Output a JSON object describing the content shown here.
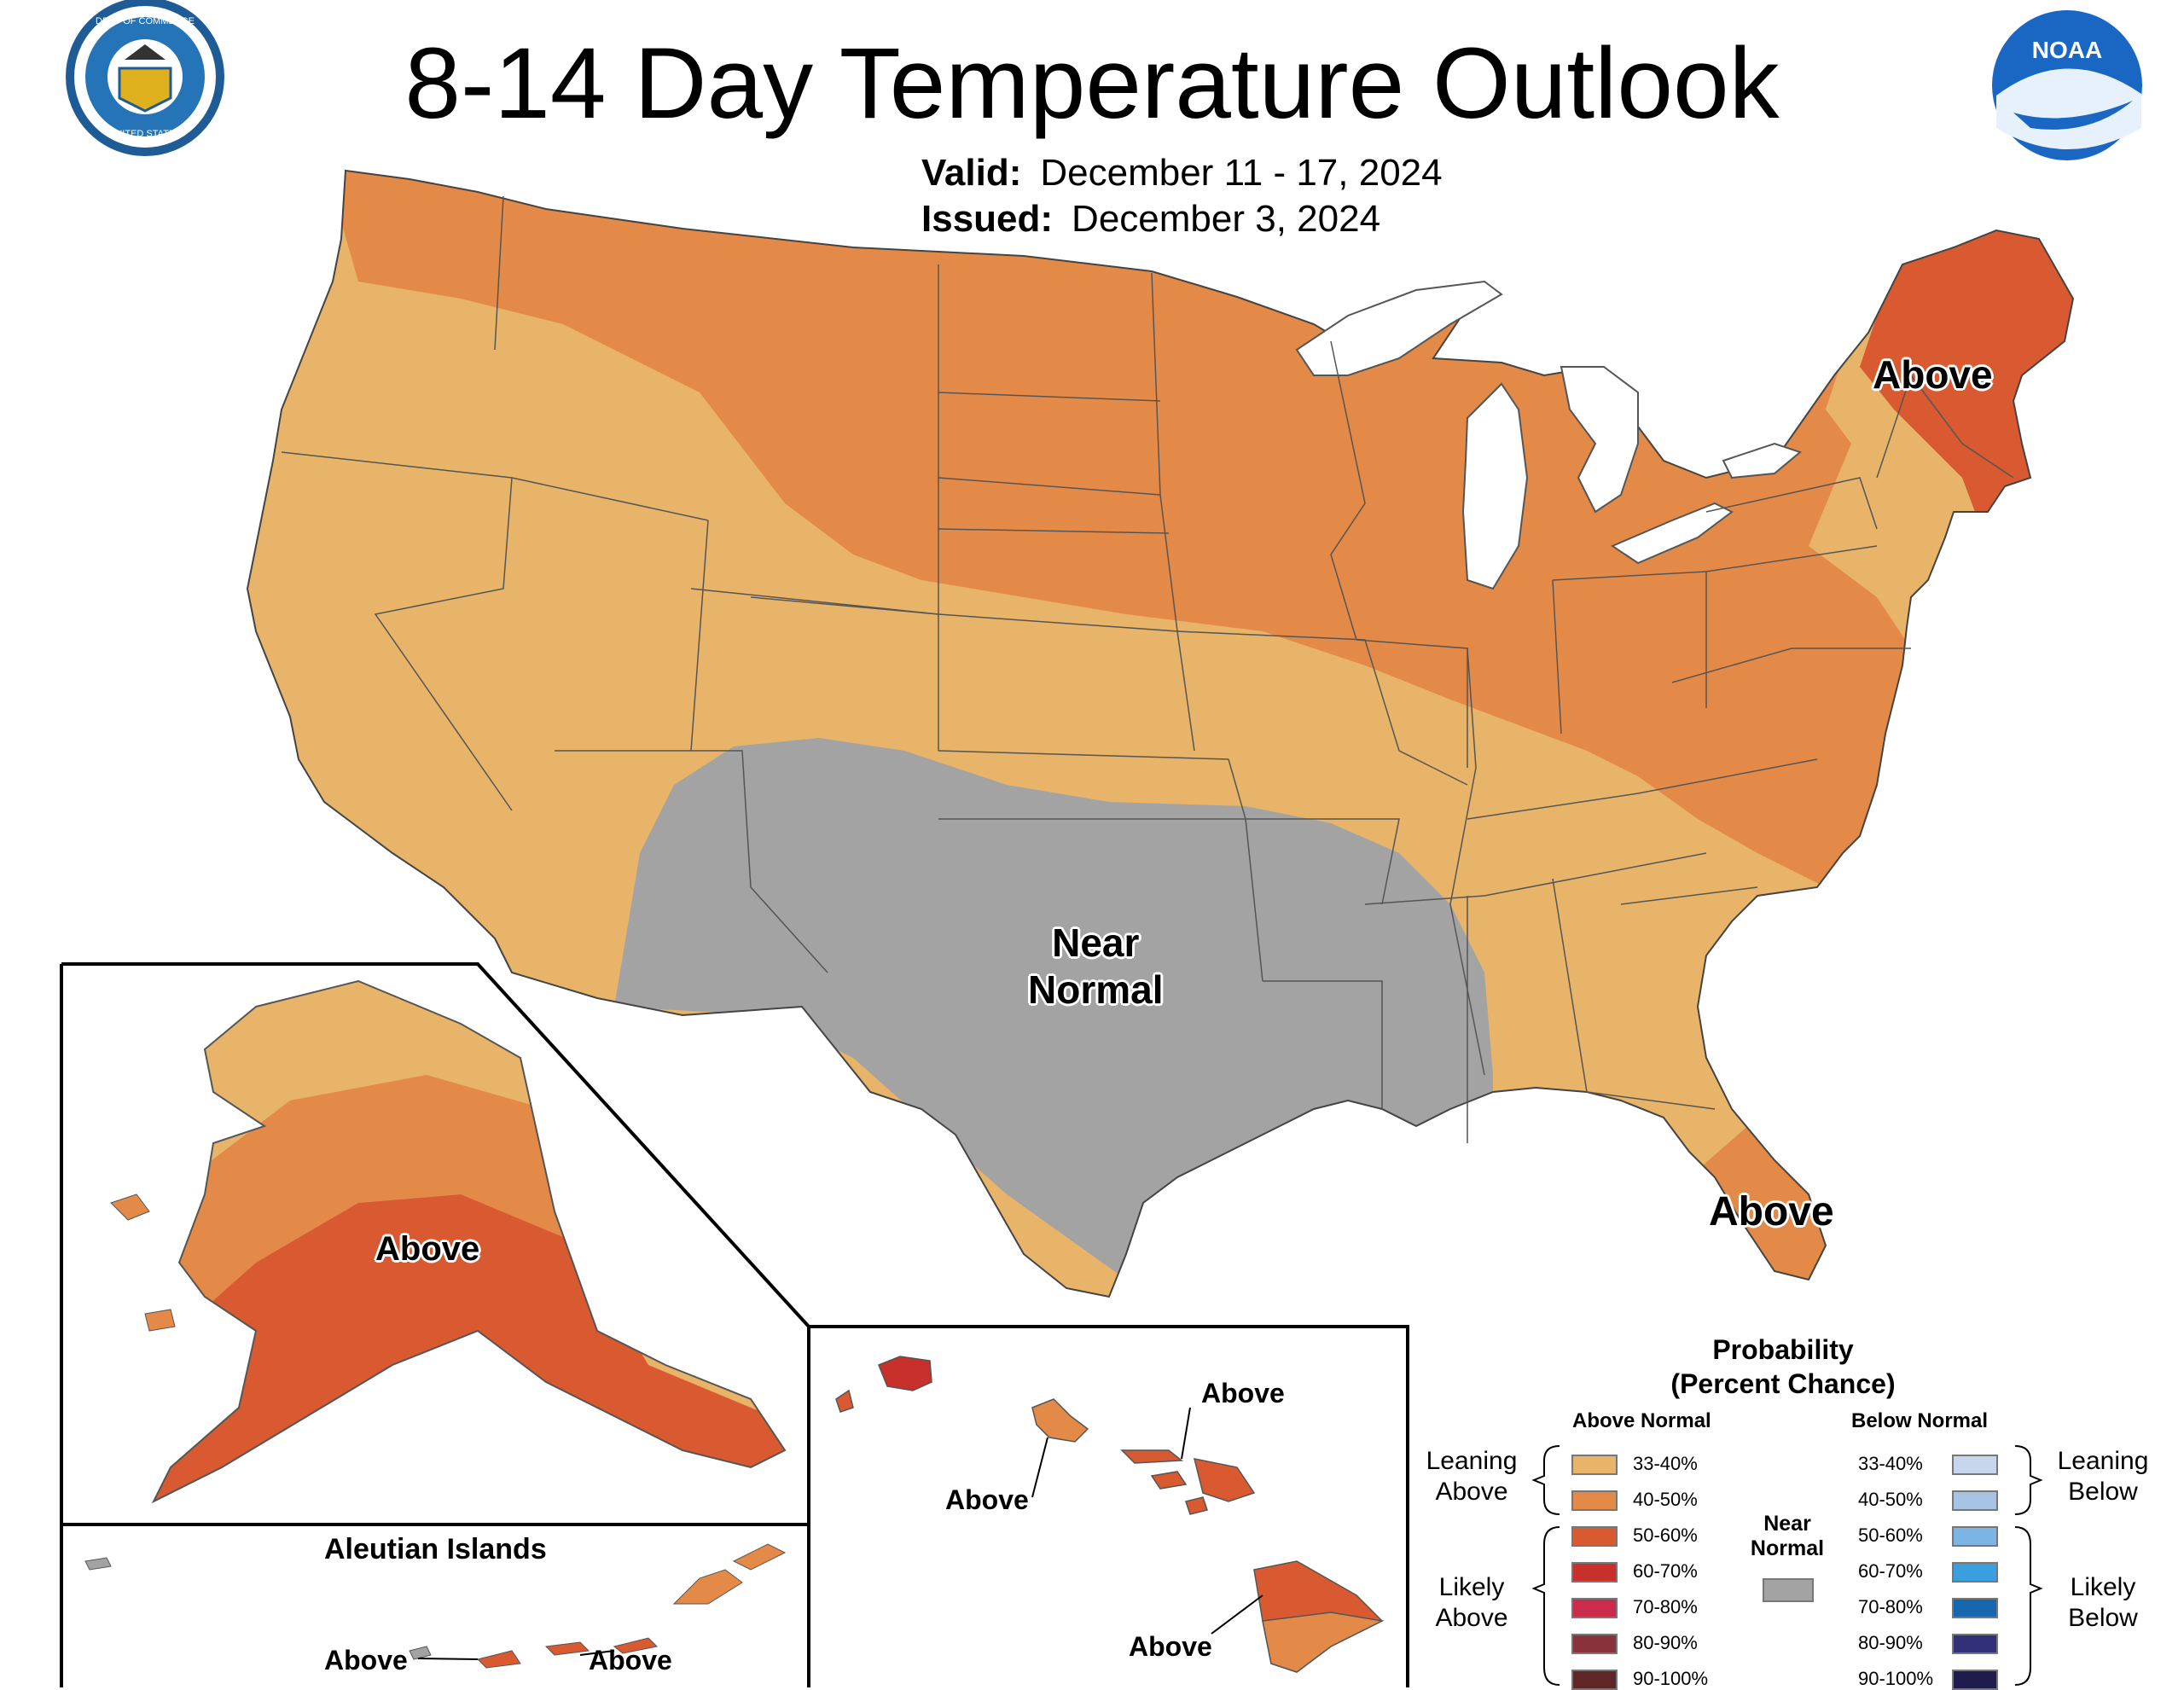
{
  "header": {
    "title": "8-14 Day Temperature Outlook",
    "valid_label": "Valid:",
    "valid_value": "December 11 - 17, 2024",
    "issued_label": "Issued:",
    "issued_value": "December 3, 2024",
    "doc_seal_lettering": "DEPARTMENT OF COMMERCE · UNITED STATES OF AMERICA",
    "noaa_logo_text": "NOAA"
  },
  "map_labels": {
    "northeast": "Above",
    "florida": "Above",
    "south": "Near\nNormal",
    "alaska": "Above",
    "hawaii_maui": "Above",
    "hawaii_oahu": "Above",
    "hawaii_big_island": "Above",
    "aleutian_west": "Above",
    "aleutian_east": "Above",
    "aleutian_title": "Aleutian Islands"
  },
  "legend": {
    "title": "Probability\n(Percent Chance)",
    "above_head": "Above Normal",
    "below_head": "Below Normal",
    "near_normal": "Near\nNormal",
    "leaning_above": "Leaning\nAbove",
    "likely_above": "Likely\nAbove",
    "leaning_below": "Leaning\nBelow",
    "likely_below": "Likely\nBelow",
    "above_items": [
      {
        "label": "33-40%",
        "color": "#e8b469"
      },
      {
        "label": "40-50%",
        "color": "#e48a48"
      },
      {
        "label": "50-60%",
        "color": "#d95a31"
      },
      {
        "label": "60-70%",
        "color": "#c8302b"
      },
      {
        "label": "70-80%",
        "color": "#cc2c4c"
      },
      {
        "label": "80-90%",
        "color": "#8a323c"
      },
      {
        "label": "90-100%",
        "color": "#5e2626"
      }
    ],
    "below_items": [
      {
        "label": "33-40%",
        "color": "#c7d6ec"
      },
      {
        "label": "40-50%",
        "color": "#a6c3e4"
      },
      {
        "label": "50-60%",
        "color": "#7cb4e4"
      },
      {
        "label": "60-70%",
        "color": "#3b9ede"
      },
      {
        "label": "70-80%",
        "color": "#1667ae"
      },
      {
        "label": "80-90%",
        "color": "#33307a"
      },
      {
        "label": "90-100%",
        "color": "#1e1c4e"
      }
    ],
    "near_normal_color": "#a3a3a3"
  }
}
